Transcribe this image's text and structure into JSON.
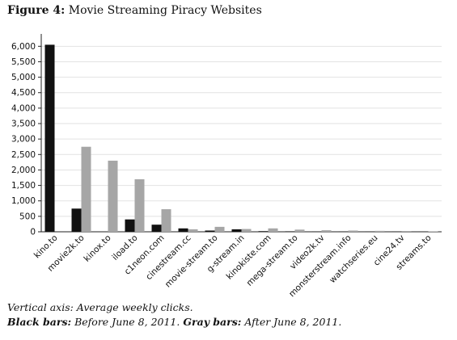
{
  "figure": {
    "number_label": "Figure 4:",
    "title": "Movie Streaming Piracy Websites"
  },
  "captions": {
    "line1": "Vertical axis: Average weekly clicks.",
    "black_label": "Black bars:",
    "black_text": " Before June 8, 2011. ",
    "gray_label": "Gray bars:",
    "gray_text": " After June 8, 2011."
  },
  "chart_data": {
    "type": "bar",
    "title": "",
    "xlabel": "",
    "ylabel": "",
    "ylim": [
      0,
      6400
    ],
    "yticks": [
      0,
      500,
      1000,
      1500,
      2000,
      2500,
      3000,
      3500,
      4000,
      4500,
      5000,
      5500,
      6000
    ],
    "ytick_labels": [
      "0",
      "500",
      "1,000",
      "1,500",
      "2,000",
      "2,500",
      "3,000",
      "3,500",
      "4,000",
      "4,500",
      "5,000",
      "5,500",
      "6,000"
    ],
    "grid": true,
    "categories": [
      "kino.to",
      "movie2k.to",
      "kinox.to",
      "iload.to",
      "c1neon.com",
      "cinestream.cc",
      "movie-stream.to",
      "g-stream.in",
      "kinokiste.com",
      "mega-stream.to",
      "video2k.tv",
      "monsterstream.info",
      "watchseries.eu",
      "cine24.tv",
      "streams.to"
    ],
    "series": [
      {
        "name": "Before June 8, 2011",
        "color": "#111111",
        "values": [
          6050,
          750,
          0,
          400,
          230,
          110,
          40,
          80,
          20,
          15,
          10,
          10,
          8,
          8,
          5
        ]
      },
      {
        "name": "After June 8, 2011",
        "color": "#a6a6a6",
        "values": [
          0,
          2750,
          2300,
          1700,
          730,
          80,
          160,
          90,
          110,
          70,
          50,
          40,
          30,
          25,
          15
        ]
      }
    ]
  }
}
